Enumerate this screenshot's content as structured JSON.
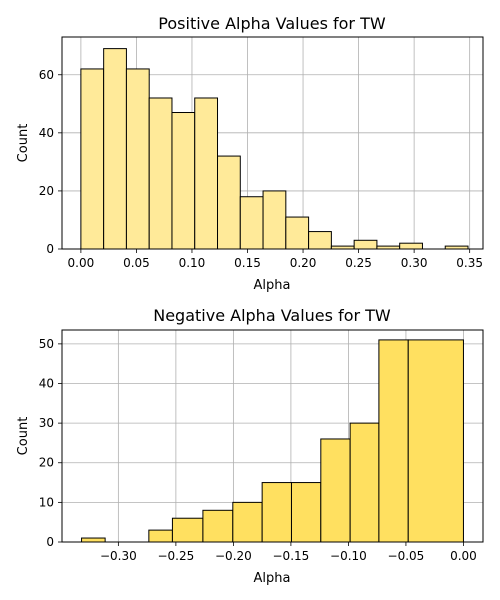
{
  "chart_data": [
    {
      "type": "bar",
      "title": "Positive Alpha Values for TW",
      "xlabel": "Alpha",
      "ylabel": "Count",
      "xlim": [
        -0.017,
        0.362
      ],
      "ylim": [
        0,
        73
      ],
      "xticks": [
        0.0,
        0.05,
        0.1,
        0.15,
        0.2,
        0.25,
        0.3,
        0.35
      ],
      "xtick_labels": [
        "0.00",
        "0.05",
        "0.10",
        "0.15",
        "0.20",
        "0.25",
        "0.30",
        "0.35"
      ],
      "yticks": [
        0,
        20,
        40,
        60
      ],
      "ytick_labels": [
        "0",
        "20",
        "40",
        "60"
      ],
      "grid": true,
      "bar_color": "#ffea99",
      "edge_color": "#000000",
      "bins": [
        {
          "start": 0.0,
          "end": 0.0205,
          "value": 62
        },
        {
          "start": 0.0205,
          "end": 0.041,
          "value": 69
        },
        {
          "start": 0.041,
          "end": 0.0615,
          "value": 62
        },
        {
          "start": 0.0615,
          "end": 0.082,
          "value": 52
        },
        {
          "start": 0.082,
          "end": 0.1025,
          "value": 47
        },
        {
          "start": 0.1025,
          "end": 0.123,
          "value": 52
        },
        {
          "start": 0.123,
          "end": 0.1435,
          "value": 32
        },
        {
          "start": 0.1435,
          "end": 0.164,
          "value": 18
        },
        {
          "start": 0.164,
          "end": 0.1845,
          "value": 20
        },
        {
          "start": 0.1845,
          "end": 0.205,
          "value": 11
        },
        {
          "start": 0.205,
          "end": 0.2255,
          "value": 6
        },
        {
          "start": 0.2255,
          "end": 0.246,
          "value": 1
        },
        {
          "start": 0.246,
          "end": 0.2665,
          "value": 3
        },
        {
          "start": 0.2665,
          "end": 0.287,
          "value": 1
        },
        {
          "start": 0.287,
          "end": 0.3075,
          "value": 2
        },
        {
          "start": 0.3075,
          "end": 0.328,
          "value": 0
        },
        {
          "start": 0.328,
          "end": 0.3485,
          "value": 1
        }
      ]
    },
    {
      "type": "bar",
      "title": "Negative Alpha Values for TW",
      "xlabel": "Alpha",
      "ylabel": "Count",
      "xlim": [
        -0.349,
        0.017
      ],
      "ylim": [
        0,
        53.5
      ],
      "xticks": [
        -0.3,
        -0.25,
        -0.2,
        -0.15,
        -0.1,
        -0.05,
        0.0
      ],
      "xtick_labels": [
        "−0.30",
        "−0.25",
        "−0.20",
        "−0.15",
        "−0.10",
        "−0.05",
        "0.00"
      ],
      "yticks": [
        0,
        10,
        20,
        30,
        40,
        50
      ],
      "ytick_labels": [
        "0",
        "10",
        "20",
        "30",
        "40",
        "50"
      ],
      "grid": true,
      "bar_color": "#ffe060",
      "edge_color": "#000000",
      "bins": [
        {
          "start": -0.332,
          "end": -0.3115,
          "value": 1
        },
        {
          "start": -0.3115,
          "end": -0.2735,
          "value": 0
        },
        {
          "start": -0.2735,
          "end": -0.253,
          "value": 3
        },
        {
          "start": -0.253,
          "end": -0.2265,
          "value": 6
        },
        {
          "start": -0.2265,
          "end": -0.2005,
          "value": 8
        },
        {
          "start": -0.2005,
          "end": -0.175,
          "value": 10
        },
        {
          "start": -0.175,
          "end": -0.1495,
          "value": 15
        },
        {
          "start": -0.1495,
          "end": -0.124,
          "value": 15
        },
        {
          "start": -0.124,
          "end": -0.0985,
          "value": 26
        },
        {
          "start": -0.0985,
          "end": -0.0735,
          "value": 30
        },
        {
          "start": -0.0735,
          "end": -0.048,
          "value": 51
        },
        {
          "start": -0.048,
          "end": 0.0,
          "value": 51
        }
      ]
    }
  ]
}
